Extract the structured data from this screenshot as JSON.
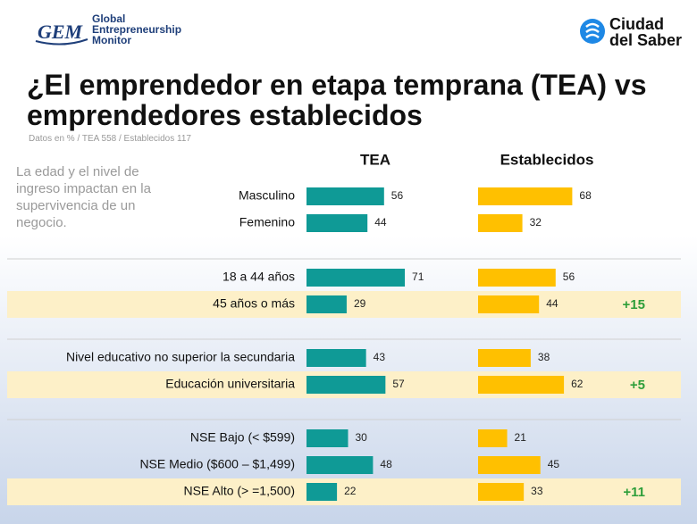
{
  "header": {
    "gem_logo": "GEM",
    "gem_text": [
      "Global",
      "Entrepreneurship",
      "Monitor"
    ],
    "partner": [
      "Ciudad",
      "del Saber"
    ]
  },
  "chart_data": {
    "type": "bar",
    "orientation": "horizontal",
    "title": "¿El emprendedor en etapa temprana (TEA) vs emprendedores establecidos",
    "subtitle": "Datos en % / TEA 558 / Establecidos 117",
    "note": "La edad y el nivel de ingreso impactan en la supervivencia de un negocio.",
    "categories": [
      "Masculino",
      "Femenino",
      "18 a 44 años",
      "45 años o más",
      "Nivel educativo no superior la secundaria",
      "Educación universitaria",
      "NSE Bajo (< $599)",
      "NSE Medio ($600 – $1,499)",
      "NSE Alto (> =1,500)"
    ],
    "series": [
      {
        "name": "TEA",
        "color": "#0f9a96",
        "values": [
          56,
          44,
          71,
          29,
          43,
          57,
          30,
          48,
          22
        ]
      },
      {
        "name": "Establecidos",
        "color": "#ffc000",
        "values": [
          68,
          32,
          56,
          44,
          38,
          62,
          21,
          45,
          33
        ]
      }
    ],
    "annotations": [
      null,
      null,
      null,
      "+15",
      null,
      "+5",
      null,
      null,
      "+11"
    ]
  }
}
